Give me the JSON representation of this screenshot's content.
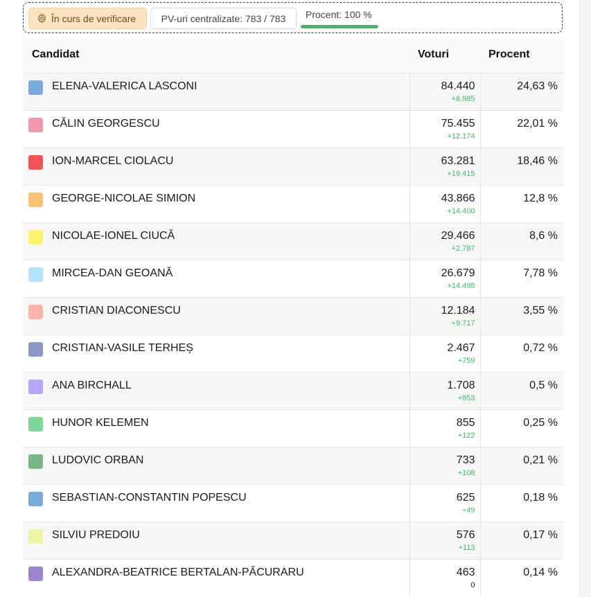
{
  "status": {
    "verification_label": "În curs de verificare",
    "pv_label": "PV-uri centralizate: 783 / 783",
    "progress_label": "Procent: 100 %",
    "progress_fraction": 1.0
  },
  "table": {
    "headers": {
      "candidate": "Candidat",
      "votes": "Voturi",
      "percent": "Procent"
    },
    "rows": [
      {
        "name": "ELENA-VALERICA LASCONI",
        "color": "#7ea9de",
        "votes": "84.440",
        "delta": "+8.985",
        "percent": "24,63 %"
      },
      {
        "name": "CĂLIN GEORGESCU",
        "color": "#f29aab",
        "votes": "75.455",
        "delta": "+12.174",
        "percent": "22,01 %"
      },
      {
        "name": "ION-MARCEL CIOLACU",
        "color": "#f2545b",
        "votes": "63.281",
        "delta": "+19.415",
        "percent": "18,46 %"
      },
      {
        "name": "GEORGE-NICOLAE SIMION",
        "color": "#fbc376",
        "votes": "43.866",
        "delta": "+14.400",
        "percent": "12,8 %"
      },
      {
        "name": "NICOLAE-IONEL CIUCĂ",
        "color": "#fdf36b",
        "votes": "29.466",
        "delta": "+2.787",
        "percent": "8,6 %"
      },
      {
        "name": "MIRCEA-DAN GEOANĂ",
        "color": "#b5e3fc",
        "votes": "26.679",
        "delta": "+14.495",
        "percent": "7,78 %"
      },
      {
        "name": "CRISTIAN DIACONESCU",
        "color": "#fcb3a8",
        "votes": "12.184",
        "delta": "+9.717",
        "percent": "3,55 %"
      },
      {
        "name": "CRISTIAN-VASILE TERHEȘ",
        "color": "#8c97c2",
        "votes": "2.467",
        "delta": "+759",
        "percent": "0,72 %"
      },
      {
        "name": "ANA BIRCHALL",
        "color": "#b7a6f2",
        "votes": "1.708",
        "delta": "+853",
        "percent": "0,5 %"
      },
      {
        "name": "HUNOR KELEMEN",
        "color": "#7fd59a",
        "votes": "855",
        "delta": "+122",
        "percent": "0,25 %"
      },
      {
        "name": "LUDOVIC ORBAN",
        "color": "#79b587",
        "votes": "733",
        "delta": "+108",
        "percent": "0,21 %"
      },
      {
        "name": "SEBASTIAN-CONSTANTIN POPESCU",
        "color": "#7cacd6",
        "votes": "625",
        "delta": "+49",
        "percent": "0,18 %"
      },
      {
        "name": "SILVIU PREDOIU",
        "color": "#eef5a6",
        "votes": "576",
        "delta": "+113",
        "percent": "0,17 %"
      },
      {
        "name": "ALEXANDRA-BEATRICE BERTALAN-PĂCURARU",
        "color": "#9b86cf",
        "votes": "463",
        "delta": "0",
        "percent": "0,14 %"
      }
    ]
  }
}
